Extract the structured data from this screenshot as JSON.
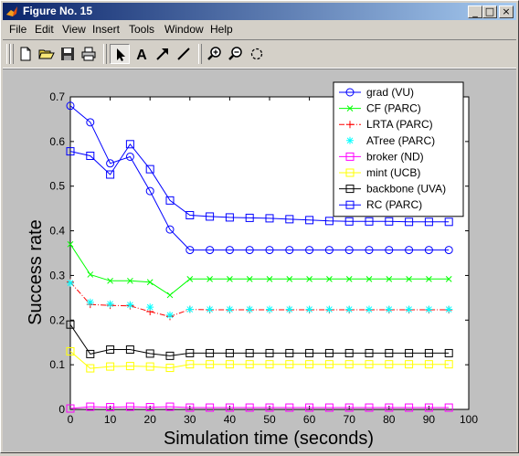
{
  "window": {
    "title": "Figure No. 15"
  },
  "title_buttons": {
    "minimize": "_",
    "maximize": "□",
    "close": "×"
  },
  "menu": [
    {
      "label": "File",
      "mnemonic": "F"
    },
    {
      "label": "Edit",
      "mnemonic": "E"
    },
    {
      "label": "View",
      "mnemonic": "V"
    },
    {
      "label": "Insert",
      "mnemonic": "I"
    },
    {
      "label": "Tools",
      "mnemonic": "T"
    },
    {
      "label": "Window",
      "mnemonic": "W"
    },
    {
      "label": "Help",
      "mnemonic": "H"
    }
  ],
  "toolbar": {
    "icons": [
      "new-file-icon",
      "open-folder-icon",
      "save-disk-icon",
      "print-icon",
      "pointer-arrow-icon",
      "text-a-icon",
      "arrow-icon",
      "line-icon",
      "zoom-in-icon",
      "zoom-out-icon",
      "rotate-icon"
    ],
    "pressed": "pointer-arrow-icon",
    "text_tool_label": "A"
  },
  "chart_data": {
    "type": "line",
    "xlabel": "Simulation time (seconds)",
    "ylabel": "Success rate",
    "xlim": [
      0,
      100
    ],
    "ylim": [
      0,
      0.7
    ],
    "xticks": [
      "0",
      "10",
      "20",
      "30",
      "40",
      "50",
      "60",
      "70",
      "80",
      "90",
      "100"
    ],
    "yticks": [
      "0",
      "0.1",
      "0.2",
      "0.3",
      "0.4",
      "0.5",
      "0.6",
      "0.7"
    ],
    "legend_position": "top-right",
    "x": [
      0,
      5,
      10,
      15,
      20,
      25,
      30,
      35,
      40,
      45,
      50,
      55,
      60,
      65,
      70,
      75,
      80,
      85,
      90,
      95
    ],
    "series": [
      {
        "name": "grad (VU)",
        "color": "#0000ff",
        "marker": "circle",
        "line": "solid",
        "values": [
          0.68,
          0.643,
          0.551,
          0.566,
          0.489,
          0.403,
          0.357,
          0.357,
          0.357,
          0.357,
          0.357,
          0.357,
          0.357,
          0.357,
          0.357,
          0.357,
          0.357,
          0.357,
          0.357,
          0.357
        ]
      },
      {
        "name": "CF (PARC)",
        "color": "#00ff00",
        "marker": "x",
        "line": "solid",
        "values": [
          0.37,
          0.302,
          0.288,
          0.288,
          0.285,
          0.256,
          0.292,
          0.292,
          0.292,
          0.292,
          0.292,
          0.292,
          0.292,
          0.292,
          0.292,
          0.292,
          0.292,
          0.292,
          0.292,
          0.292
        ]
      },
      {
        "name": "LRTA (PARC)",
        "color": "#ff0000",
        "marker": "plus",
        "line": "dashdot",
        "values": [
          0.285,
          0.235,
          0.233,
          0.232,
          0.219,
          0.208,
          0.224,
          0.223,
          0.223,
          0.223,
          0.223,
          0.223,
          0.223,
          0.223,
          0.223,
          0.223,
          0.223,
          0.223,
          0.223,
          0.223
        ]
      },
      {
        "name": "ATree (PARC)",
        "color": "#00ffff",
        "marker": "star",
        "line": "none",
        "values": [
          0.283,
          0.24,
          0.236,
          0.234,
          0.229,
          0.211,
          0.224,
          0.224,
          0.224,
          0.224,
          0.224,
          0.224,
          0.224,
          0.224,
          0.224,
          0.224,
          0.224,
          0.224,
          0.224,
          0.224
        ]
      },
      {
        "name": "broker (ND)",
        "color": "#ff00ff",
        "marker": "square",
        "line": "solid",
        "values": [
          0.002,
          0.006,
          0.005,
          0.006,
          0.005,
          0.006,
          0.004,
          0.004,
          0.004,
          0.004,
          0.004,
          0.004,
          0.004,
          0.004,
          0.004,
          0.004,
          0.004,
          0.004,
          0.004,
          0.004
        ]
      },
      {
        "name": "mint (UCB)",
        "color": "#ffff00",
        "marker": "square",
        "line": "solid",
        "values": [
          0.13,
          0.092,
          0.096,
          0.097,
          0.096,
          0.093,
          0.101,
          0.101,
          0.101,
          0.101,
          0.101,
          0.101,
          0.101,
          0.101,
          0.101,
          0.101,
          0.101,
          0.101,
          0.101,
          0.101
        ]
      },
      {
        "name": "backbone (UVA)",
        "color": "#000000",
        "marker": "square",
        "line": "solid",
        "values": [
          0.19,
          0.124,
          0.134,
          0.134,
          0.125,
          0.12,
          0.126,
          0.126,
          0.126,
          0.126,
          0.126,
          0.126,
          0.126,
          0.126,
          0.126,
          0.126,
          0.126,
          0.126,
          0.126,
          0.126
        ]
      },
      {
        "name": "RC (PARC)",
        "color": "#0000ff",
        "marker": "square",
        "line": "solid",
        "values": [
          0.578,
          0.568,
          0.526,
          0.594,
          0.538,
          0.468,
          0.435,
          0.432,
          0.43,
          0.429,
          0.428,
          0.426,
          0.424,
          0.422,
          0.421,
          0.421,
          0.421,
          0.42,
          0.42,
          0.42
        ]
      }
    ]
  }
}
